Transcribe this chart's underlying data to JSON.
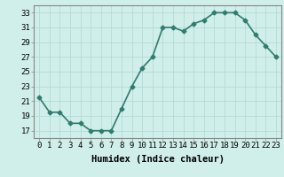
{
  "x": [
    0,
    1,
    2,
    3,
    4,
    5,
    6,
    7,
    8,
    9,
    10,
    11,
    12,
    13,
    14,
    15,
    16,
    17,
    18,
    19,
    20,
    21,
    22,
    23
  ],
  "y": [
    21.5,
    19.5,
    19.5,
    18.0,
    18.0,
    17.0,
    17.0,
    17.0,
    20.0,
    23.0,
    25.5,
    27.0,
    31.0,
    31.0,
    30.5,
    31.5,
    32.0,
    33.0,
    33.0,
    33.0,
    32.0,
    30.0,
    28.5,
    27.0
  ],
  "line_color": "#2e7d6e",
  "marker": "D",
  "marker_size": 2.5,
  "bg_color": "#d0eeea",
  "grid_color": "#b0d8d2",
  "xlabel": "Humidex (Indice chaleur)",
  "xlim": [
    -0.5,
    23.5
  ],
  "ylim": [
    16,
    34
  ],
  "yticks": [
    17,
    19,
    21,
    23,
    25,
    27,
    29,
    31,
    33
  ],
  "xticks": [
    0,
    1,
    2,
    3,
    4,
    5,
    6,
    7,
    8,
    9,
    10,
    11,
    12,
    13,
    14,
    15,
    16,
    17,
    18,
    19,
    20,
    21,
    22,
    23
  ],
  "xlabel_fontsize": 7.5,
  "tick_fontsize": 6.5,
  "line_width": 1.2
}
